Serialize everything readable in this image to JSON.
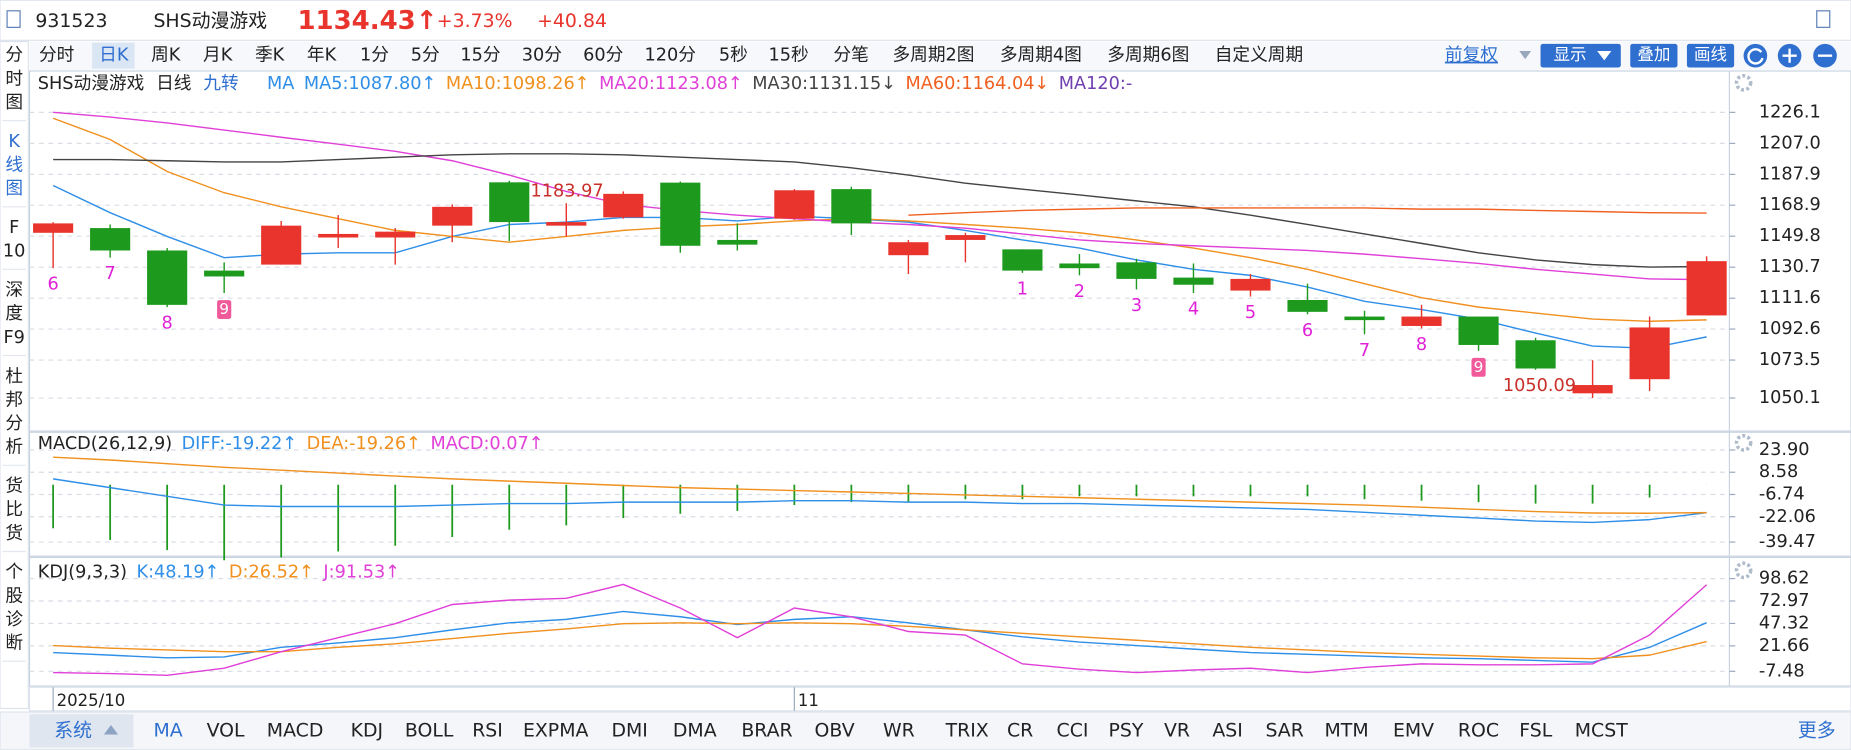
{
  "header": {
    "code": "931523",
    "name": "SHS动漫游戏",
    "price": "1134.43↑",
    "change_pct": "+3.73%",
    "change": "+40.84"
  },
  "left_tabs": [
    [
      "分",
      "时",
      "图"
    ],
    [
      "K",
      "线",
      "图"
    ],
    [
      "F",
      "10"
    ],
    [
      "深",
      "度",
      "F9"
    ],
    [
      "杜",
      "邦",
      "分",
      "析"
    ],
    [
      "货",
      "比",
      "货"
    ],
    [
      "个",
      "股",
      "诊",
      "断"
    ]
  ],
  "left_active": 1,
  "periods": {
    "items": [
      "分时",
      "日K",
      "周K",
      "月K",
      "季K",
      "年K",
      "1分",
      "5分",
      "15分",
      "30分",
      "60分",
      "120分",
      "5秒",
      "15秒",
      "分笔",
      "多周期2图",
      "多周期4图",
      "多周期6图",
      "自定义周期"
    ],
    "active": 1
  },
  "tools": {
    "adjust": "前复权",
    "show": "显示",
    "overlay": "叠加",
    "draw": "画线"
  },
  "bottom_tabs": {
    "system": "系统",
    "items": [
      "MA",
      "VOL",
      "MACD",
      "KDJ",
      "BOLL",
      "RSI",
      "EXPMA",
      "DMI",
      "DMA",
      "BRAR",
      "OBV",
      "WR",
      "TRIX",
      "CR",
      "CCI",
      "PSY",
      "VR",
      "ASI",
      "SAR",
      "MTM",
      "EMV",
      "ROC",
      "FSL",
      "MCST"
    ],
    "active": 0,
    "more": "更多"
  },
  "chart_data": [
    {
      "type": "candlestick",
      "legend": [
        "SHS动漫游戏",
        "日线",
        "九转",
        "MA"
      ],
      "up_color": "#e8342c",
      "down_color": "#1d9a1d",
      "categories": [
        "2025/10",
        null,
        null,
        null,
        null,
        null,
        null,
        null,
        null,
        null,
        null,
        null,
        null,
        "11",
        null,
        null,
        null,
        null,
        null,
        null,
        null,
        null,
        null,
        null,
        null,
        null,
        null,
        null,
        null,
        null
      ],
      "candles": [
        {
          "open": 1151.9,
          "high": 1158.4,
          "low": 1130.1,
          "close": 1157.7
        },
        {
          "open": 1154.8,
          "high": 1157.0,
          "low": 1136.6,
          "close": 1141.0
        },
        {
          "open": 1141.0,
          "high": 1142.5,
          "low": 1106.1,
          "close": 1107.5
        },
        {
          "open": 1128.6,
          "high": 1133.7,
          "low": 1114.8,
          "close": 1125.0
        },
        {
          "open": 1132.3,
          "high": 1159.2,
          "low": 1132.3,
          "close": 1156.3
        },
        {
          "open": 1149.0,
          "high": 1162.8,
          "low": 1142.5,
          "close": 1151.2
        },
        {
          "open": 1149.0,
          "high": 1154.8,
          "low": 1132.3,
          "close": 1152.6
        },
        {
          "open": 1156.3,
          "high": 1169.4,
          "low": 1146.1,
          "close": 1167.9
        },
        {
          "open": 1183.0,
          "high": 1183.97,
          "low": 1146.8,
          "close": 1158.5
        },
        {
          "open": 1156.3,
          "high": 1170.1,
          "low": 1149.7,
          "close": 1158.5
        },
        {
          "open": 1161.4,
          "high": 1177.4,
          "low": 1160.6,
          "close": 1175.9
        },
        {
          "open": 1182.8,
          "high": 1183.5,
          "low": 1139.6,
          "close": 1143.9
        },
        {
          "open": 1147.5,
          "high": 1157.7,
          "low": 1141.0,
          "close": 1144.6
        },
        {
          "open": 1160.6,
          "high": 1178.8,
          "low": 1159.9,
          "close": 1178.1
        },
        {
          "open": 1178.8,
          "high": 1180.3,
          "low": 1150.5,
          "close": 1157.7
        },
        {
          "open": 1138.1,
          "high": 1147.5,
          "low": 1126.5,
          "close": 1146.1
        },
        {
          "open": 1147.5,
          "high": 1151.9,
          "low": 1133.7,
          "close": 1150.5
        },
        {
          "open": 1141.7,
          "high": 1141.7,
          "low": 1127.2,
          "close": 1128.6
        },
        {
          "open": 1133.0,
          "high": 1138.8,
          "low": 1125.7,
          "close": 1130.1
        },
        {
          "open": 1133.7,
          "high": 1135.9,
          "low": 1117.0,
          "close": 1123.5
        },
        {
          "open": 1124.3,
          "high": 1133.0,
          "low": 1114.8,
          "close": 1119.9
        },
        {
          "open": 1116.3,
          "high": 1126.5,
          "low": 1112.6,
          "close": 1123.5
        },
        {
          "open": 1110.5,
          "high": 1120.6,
          "low": 1101.7,
          "close": 1103.2
        },
        {
          "open": 1100.3,
          "high": 1103.9,
          "low": 1089.4,
          "close": 1098.1
        },
        {
          "open": 1094.5,
          "high": 1107.5,
          "low": 1093.0,
          "close": 1100.3
        },
        {
          "open": 1100.3,
          "high": 1100.3,
          "low": 1079.2,
          "close": 1082.8
        },
        {
          "open": 1085.7,
          "high": 1087.2,
          "low": 1067.5,
          "close": 1068.3
        },
        {
          "open": 1053.0,
          "high": 1073.4,
          "low": 1050.09,
          "close": 1058.1
        },
        {
          "open": 1061.7,
          "high": 1100.3,
          "low": 1054.4,
          "close": 1093.59
        },
        {
          "open": 1101.0,
          "high": 1137.4,
          "low": 1101.0,
          "close": 1134.43
        }
      ],
      "nine_turn": [
        6,
        7,
        8,
        9,
        null,
        null,
        null,
        null,
        null,
        null,
        null,
        null,
        null,
        null,
        null,
        null,
        null,
        1,
        2,
        3,
        4,
        5,
        6,
        7,
        8,
        9,
        null,
        null,
        null,
        null
      ],
      "nine_color": "#e020d8",
      "series": [
        {
          "legend": "MA5:1087.80↑",
          "color": "#2f8fe8",
          "values": [
            1181.0,
            1164.3,
            1149.7,
            1136.6,
            1138.8,
            1139.6,
            1139.6,
            1149.7,
            1157.0,
            1158.5,
            1161.4,
            1161.4,
            1159.2,
            1162.1,
            1160.6,
            1158.5,
            1153.4,
            1147.5,
            1142.5,
            1135.2,
            1129.4,
            1125.7,
            1118.5,
            1109.7,
            1104.6,
            1098.8,
            1090.1,
            1082.1,
            1080.7,
            1087.8
          ]
        },
        {
          "legend": "MA10:1098.26↑",
          "color": "#f0901e",
          "values": [
            1222.5,
            1209.4,
            1189.7,
            1176.6,
            1167.9,
            1160.6,
            1153.4,
            1149.7,
            1146.1,
            1149.7,
            1153.4,
            1155.6,
            1157.0,
            1159.2,
            1160.6,
            1159.2,
            1157.0,
            1154.8,
            1151.9,
            1147.5,
            1142.5,
            1136.6,
            1129.4,
            1120.6,
            1111.9,
            1106.1,
            1102.5,
            1098.8,
            1097.4,
            1098.26
          ]
        },
        {
          "legend": "MA20:1123.08↑",
          "color": "#e040d8",
          "values": [
            1226.1,
            1223.2,
            1219.6,
            1215.2,
            1210.8,
            1206.5,
            1202.1,
            1196.3,
            1187.5,
            1177.4,
            1169.4,
            1165.7,
            1162.8,
            1160.6,
            1158.5,
            1157.0,
            1154.8,
            1151.2,
            1147.5,
            1145.4,
            1143.9,
            1142.5,
            1141.0,
            1138.8,
            1135.9,
            1133.0,
            1129.4,
            1126.5,
            1123.5,
            1123.08
          ]
        },
        {
          "legend": "MA30:1131.15↓",
          "color": "#444444",
          "values": [
            1197.0,
            1197.0,
            1196.3,
            1195.6,
            1195.6,
            1197.0,
            1198.5,
            1199.9,
            1200.6,
            1200.6,
            1199.9,
            1198.5,
            1197.0,
            1195.6,
            1191.9,
            1187.5,
            1182.5,
            1178.8,
            1175.2,
            1171.6,
            1167.9,
            1162.8,
            1157.0,
            1151.2,
            1145.4,
            1139.6,
            1135.2,
            1132.3,
            1130.8,
            1131.15
          ]
        },
        {
          "legend": "MA60:1164.04↓",
          "color": "#f06020",
          "values": [
            null,
            null,
            null,
            null,
            null,
            null,
            null,
            null,
            null,
            null,
            null,
            null,
            null,
            null,
            null,
            1162.8,
            1164.3,
            1165.7,
            1166.5,
            1167.2,
            1167.2,
            1167.2,
            1167.2,
            1167.2,
            1166.5,
            1166.5,
            1165.7,
            1165.0,
            1164.3,
            1164.04
          ]
        },
        {
          "legend": "MA120:-",
          "color": "#7040b0"
        }
      ],
      "ylim": [
        1031.2,
        1231.2
      ],
      "yticks": [
        1226.1,
        {
          "value": 1207.0,
          "label": "1207.0"
        },
        1187.9,
        1168.9,
        1149.8,
        1130.7,
        1111.6,
        1092.6,
        1073.5,
        1050.1
      ],
      "grid": true
    },
    {
      "type": "macd",
      "title": "MACD(26,12,9)",
      "series": [
        {
          "legend": "DIFF:-19.22↑",
          "color": "#2f8fe8",
          "values": [
            4,
            -2,
            -8,
            -14,
            -15,
            -15,
            -15,
            -14,
            -13,
            -13,
            -12,
            -12,
            -12,
            -11,
            -11,
            -12,
            -12,
            -13,
            -13,
            -14,
            -15,
            -16,
            -17,
            -19,
            -21,
            -23,
            -25,
            -26,
            -24,
            -19.22
          ]
        },
        {
          "legend": "DEA:-19.26↑",
          "color": "#f0901e",
          "values": [
            19,
            17,
            14.5,
            12,
            10,
            8,
            6,
            4,
            2.5,
            1,
            -0.5,
            -2,
            -3,
            -4,
            -5,
            -6,
            -7,
            -8,
            -9,
            -10,
            -11,
            -12,
            -13,
            -14,
            -15.5,
            -17,
            -18.5,
            -19.5,
            -19.6,
            -19.26
          ]
        }
      ],
      "histogram": {
        "legend": "MACD:0.07↑",
        "color": "#e040d8",
        "up_color": "#e8342c",
        "down_color": "#1d9a1d",
        "values": [
          -30,
          -38,
          -45,
          -52,
          -50,
          -46,
          -42,
          -36,
          -31,
          -28,
          -23,
          -20,
          -18,
          -14,
          -12,
          -12,
          -10,
          -10,
          -8,
          -8,
          -8,
          -8,
          -8,
          -10,
          -11,
          -12,
          -13,
          -13,
          -8.8,
          0.07
        ]
      },
      "ylim": [
        -48.4,
        35.3
      ],
      "yticks": [
        {
          "value": 23.9,
          "label": "23.90"
        },
        8.58,
        -6.74,
        -22.06,
        -39.47
      ],
      "grid": true
    },
    {
      "type": "line",
      "title": "KDJ(9,3,3)",
      "series": [
        {
          "legend": "K:48.19↑",
          "color": "#2f8fe8",
          "values": [
            14,
            11,
            8,
            9,
            20,
            25,
            31,
            40,
            48,
            52,
            61,
            55,
            46,
            52,
            55,
            48,
            40,
            32,
            26,
            22,
            18,
            14,
            12,
            10,
            8,
            7,
            5,
            3,
            20,
            48.19
          ]
        },
        {
          "legend": "D:26.52↑",
          "color": "#f0901e",
          "values": [
            22,
            19,
            17,
            15,
            15,
            20,
            24,
            30,
            36,
            41,
            47,
            48,
            47,
            48,
            47,
            44,
            40,
            36,
            32,
            28,
            24,
            20,
            17,
            14,
            12,
            10,
            8,
            7,
            11,
            26.52
          ]
        },
        {
          "legend": "J:91.53↑",
          "color": "#e040d8",
          "values": [
            -9,
            -10,
            -12,
            -4,
            15,
            31,
            47,
            69,
            74,
            76,
            92,
            65,
            31,
            65,
            55,
            38,
            34,
            1,
            -5,
            -9,
            -6,
            -4,
            -9,
            -3,
            1,
            0,
            0,
            1,
            34,
            91.53
          ]
        }
      ],
      "ylim": [
        -23,
        117.5
      ],
      "yticks": [
        98.62,
        72.97,
        47.32,
        21.66,
        -7.48
      ],
      "grid": true
    }
  ]
}
